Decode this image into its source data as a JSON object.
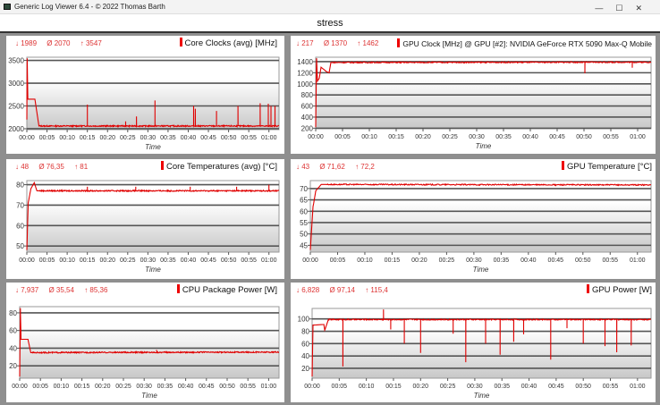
{
  "window": {
    "title": "Generic Log Viewer 6.4 - © 2022 Thomas Barth",
    "controls": [
      "—",
      "☐",
      "✕"
    ]
  },
  "header": {
    "title": "stress"
  },
  "colors": {
    "series": "#e00000",
    "grid": "#555555",
    "accent_text": "#d33333"
  },
  "chart_data": [
    {
      "type": "line",
      "title": "Core Clocks (avg) [MHz]",
      "stats": {
        "min": "↓ 1989",
        "avg": "Ø 2070",
        "max": "↑ 3547"
      },
      "xlabel": "Time",
      "ylabel": "",
      "xticks": [
        "00:00",
        "00:05",
        "00:10",
        "00:15",
        "00:20",
        "00:25",
        "00:30",
        "00:35",
        "00:40",
        "00:45",
        "00:50",
        "00:55",
        "01:00"
      ],
      "yticks": [
        2000,
        2500,
        3000,
        3500
      ],
      "ylim": [
        1980,
        3570
      ],
      "xlim": [
        "00:00:00",
        "01:02:30"
      ],
      "grid": true,
      "trace": [
        [
          "00:00:00",
          2200
        ],
        [
          "00:00:05",
          3547
        ],
        [
          "00:00:15",
          2650
        ],
        [
          "00:02:00",
          2650
        ],
        [
          "00:03:00",
          2060
        ],
        [
          "01:02:30",
          2060
        ]
      ],
      "spikes": [
        [
          "00:15:00",
          2530
        ],
        [
          "00:24:30",
          2160
        ],
        [
          "00:27:10",
          2270
        ],
        [
          "00:31:45",
          2620
        ],
        [
          "00:41:20",
          2500
        ],
        [
          "00:41:45",
          2440
        ],
        [
          "00:47:00",
          2390
        ],
        [
          "00:52:20",
          2500
        ],
        [
          "00:57:50",
          2560
        ],
        [
          "00:59:50",
          2550
        ],
        [
          "01:00:30",
          2500
        ],
        [
          "01:01:30",
          2500
        ]
      ]
    },
    {
      "type": "line",
      "title": "GPU Clock [MHz] @ GPU [#2]: NVIDIA  GeForce RTX 5090 Max-Q Mobile",
      "stats": {
        "min": "↓ 217",
        "avg": "Ø 1370",
        "max": "↑ 1462"
      },
      "xlabel": "Time",
      "ylabel": "",
      "xticks": [
        "00:00",
        "00:05",
        "00:10",
        "00:15",
        "00:20",
        "00:25",
        "00:30",
        "00:35",
        "00:40",
        "00:45",
        "00:50",
        "00:55",
        "01:00"
      ],
      "yticks": [
        200,
        400,
        600,
        800,
        1000,
        1200,
        1400
      ],
      "ylim": [
        190,
        1480
      ],
      "xlim": [
        "00:00:00",
        "01:02:30"
      ],
      "grid": true,
      "trace": [
        [
          "00:00:00",
          217
        ],
        [
          "00:00:10",
          1462
        ],
        [
          "00:00:20",
          1050
        ],
        [
          "00:00:40",
          1100
        ],
        [
          "00:01:00",
          1300
        ],
        [
          "00:02:00",
          1220
        ],
        [
          "00:02:30",
          1200
        ],
        [
          "00:02:50",
          1385
        ],
        [
          "01:02:30",
          1390
        ]
      ],
      "spikes": [
        [
          "00:50:10",
          1190
        ],
        [
          "00:59:00",
          1290
        ]
      ]
    },
    {
      "type": "line",
      "title": "Core Temperatures (avg) [°C]",
      "stats": {
        "min": "↓ 48",
        "avg": "Ø 76,35",
        "max": "↑ 81"
      },
      "xlabel": "Time",
      "ylabel": "",
      "xticks": [
        "00:00",
        "00:05",
        "00:10",
        "00:15",
        "00:20",
        "00:25",
        "00:30",
        "00:35",
        "00:40",
        "00:45",
        "00:50",
        "00:55",
        "01:00"
      ],
      "yticks": [
        50,
        60,
        70,
        80
      ],
      "ylim": [
        47,
        82
      ],
      "xlim": [
        "00:00:00",
        "01:02:30"
      ],
      "grid": true,
      "trace": [
        [
          "00:00:00",
          48
        ],
        [
          "00:00:20",
          71
        ],
        [
          "00:01:00",
          78
        ],
        [
          "00:01:50",
          81
        ],
        [
          "00:02:30",
          77
        ],
        [
          "01:02:30",
          77
        ]
      ],
      "spikes": [
        [
          "00:15:00",
          79
        ],
        [
          "00:27:00",
          79
        ],
        [
          "00:40:30",
          79
        ],
        [
          "00:52:00",
          79
        ],
        [
          "01:00:00",
          80
        ]
      ]
    },
    {
      "type": "line",
      "title": "GPU Temperature [°C]",
      "stats": {
        "min": "↓ 43",
        "avg": "Ø 71,62",
        "max": "↑ 72,2"
      },
      "xlabel": "Time",
      "ylabel": "",
      "xticks": [
        "00:00",
        "00:05",
        "00:10",
        "00:15",
        "00:20",
        "00:25",
        "00:30",
        "00:35",
        "00:40",
        "00:45",
        "00:50",
        "00:55",
        "01:00"
      ],
      "yticks": [
        45,
        50,
        55,
        60,
        65,
        70
      ],
      "ylim": [
        42,
        73.5
      ],
      "xlim": [
        "00:00:00",
        "01:02:30"
      ],
      "grid": true,
      "trace": [
        [
          "00:00:00",
          43
        ],
        [
          "00:00:30",
          62
        ],
        [
          "00:01:00",
          69
        ],
        [
          "00:02:00",
          71.8
        ],
        [
          "01:02:30",
          71.6
        ]
      ],
      "spikes": [
        [
          "00:45:00",
          71
        ]
      ]
    },
    {
      "type": "line",
      "title": "CPU Package Power [W]",
      "stats": {
        "min": "↓ 7,937",
        "avg": "Ø 35,54",
        "max": "↑ 85,36"
      },
      "xlabel": "Time",
      "ylabel": "",
      "xticks": [
        "00:00",
        "00:05",
        "00:10",
        "00:15",
        "00:20",
        "00:25",
        "00:30",
        "00:35",
        "00:40",
        "00:45",
        "00:50",
        "00:55",
        "01:00"
      ],
      "yticks": [
        20,
        40,
        60,
        80
      ],
      "ylim": [
        6,
        87
      ],
      "xlim": [
        "00:00:00",
        "01:02:30"
      ],
      "grid": true,
      "trace": [
        [
          "00:00:00",
          7.9
        ],
        [
          "00:00:10",
          85.4
        ],
        [
          "00:00:20",
          50
        ],
        [
          "00:02:00",
          50
        ],
        [
          "00:02:40",
          35
        ],
        [
          "01:02:30",
          35.5
        ]
      ],
      "spikes": [
        [
          "00:33:00",
          38
        ]
      ]
    },
    {
      "type": "line",
      "title": "GPU Power [W]",
      "stats": {
        "min": "↓ 6,828",
        "avg": "Ø 97,14",
        "max": "↑ 115,4"
      },
      "xlabel": "Time",
      "ylabel": "",
      "xticks": [
        "00:00",
        "00:05",
        "00:10",
        "00:15",
        "00:20",
        "00:25",
        "00:30",
        "00:35",
        "00:40",
        "00:45",
        "00:50",
        "00:55",
        "01:00"
      ],
      "yticks": [
        20,
        40,
        60,
        80,
        100
      ],
      "ylim": [
        4,
        117
      ],
      "xlim": [
        "00:00:00",
        "01:02:30"
      ],
      "grid": true,
      "trace": [
        [
          "00:00:00",
          6.8
        ],
        [
          "00:00:10",
          90
        ],
        [
          "00:02:10",
          91
        ],
        [
          "00:02:20",
          82
        ],
        [
          "00:03:00",
          99
        ],
        [
          "01:02:30",
          99
        ]
      ],
      "spikes": [
        [
          "00:05:40",
          23
        ],
        [
          "00:13:10",
          115.4
        ],
        [
          "00:14:30",
          83
        ],
        [
          "00:17:00",
          60
        ],
        [
          "00:20:00",
          45
        ],
        [
          "00:26:00",
          76
        ],
        [
          "00:28:20",
          30
        ],
        [
          "00:32:00",
          60
        ],
        [
          "00:34:40",
          42
        ],
        [
          "00:37:10",
          63
        ],
        [
          "00:39:00",
          75
        ],
        [
          "00:44:00",
          34
        ],
        [
          "00:47:00",
          85
        ],
        [
          "00:50:00",
          60
        ],
        [
          "00:54:00",
          56
        ],
        [
          "00:56:10",
          46
        ],
        [
          "00:58:50",
          57
        ]
      ]
    }
  ]
}
